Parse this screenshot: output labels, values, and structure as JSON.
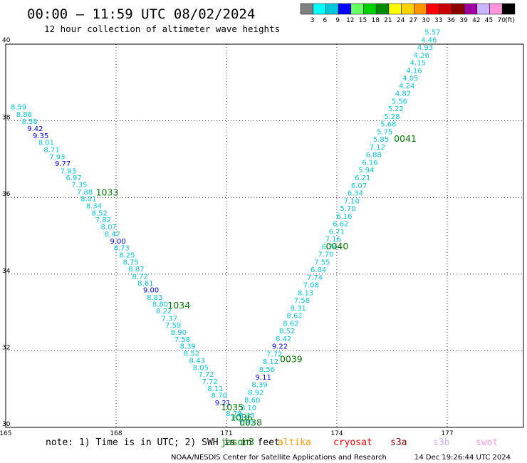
{
  "header": {
    "title": "00:00 – 11:59 UTC 08/02/2024",
    "subtitle": "12 hour collection of altimeter wave heights"
  },
  "legend": {
    "unit": "(ft)",
    "bins": [
      {
        "label": "3",
        "color": "#808080"
      },
      {
        "label": "6",
        "color": "#00ffff"
      },
      {
        "label": "9",
        "color": "#00c8dc"
      },
      {
        "label": "12",
        "color": "#0000ff"
      },
      {
        "label": "15",
        "color": "#66ff66"
      },
      {
        "label": "18",
        "color": "#00d200"
      },
      {
        "label": "21",
        "color": "#008c00"
      },
      {
        "label": "24",
        "color": "#ffff00"
      },
      {
        "label": "27",
        "color": "#ffd200"
      },
      {
        "label": "30",
        "color": "#ff9600"
      },
      {
        "label": "33",
        "color": "#ff0000"
      },
      {
        "label": "36",
        "color": "#c80000"
      },
      {
        "label": "39",
        "color": "#8c0000"
      },
      {
        "label": "42",
        "color": "#a000a0"
      },
      {
        "label": "45",
        "color": "#c8b4ff"
      },
      {
        "label": "70",
        "color": "#ff96dc"
      },
      {
        "label": "",
        "color": "#000000"
      }
    ]
  },
  "chart_data": {
    "type": "scatter",
    "xlim": [
      165,
      178
    ],
    "ylim": [
      30,
      40
    ],
    "xticks": [
      "165",
      "168",
      "171",
      "174",
      "177"
    ],
    "yticks": [
      "40",
      "38",
      "36",
      "34",
      "32",
      "30"
    ],
    "grid": true,
    "color_low": "#00c8dc",
    "color_high": "#0000ff",
    "color_time": "#007a00",
    "points": [
      {
        "x": 165.35,
        "y": 38.3,
        "v": "8.59"
      },
      {
        "x": 165.5,
        "y": 38.1,
        "v": "8.86"
      },
      {
        "x": 165.65,
        "y": 37.92,
        "v": "8.58"
      },
      {
        "x": 165.8,
        "y": 37.73,
        "v": "9.42"
      },
      {
        "x": 165.95,
        "y": 37.55,
        "v": "9.35"
      },
      {
        "x": 166.1,
        "y": 37.37,
        "v": "8.01"
      },
      {
        "x": 166.25,
        "y": 37.18,
        "v": "8.71"
      },
      {
        "x": 166.4,
        "y": 37.0,
        "v": "7.93"
      },
      {
        "x": 166.55,
        "y": 36.82,
        "v": "9.77"
      },
      {
        "x": 166.7,
        "y": 36.63,
        "v": "7.93"
      },
      {
        "x": 166.85,
        "y": 36.45,
        "v": "6.97"
      },
      {
        "x": 167.0,
        "y": 36.27,
        "v": "7.35"
      },
      {
        "x": 167.15,
        "y": 36.08,
        "v": "7.88"
      },
      {
        "x": 167.25,
        "y": 35.9,
        "v": "8.01"
      },
      {
        "x": 167.4,
        "y": 35.72,
        "v": "8.34"
      },
      {
        "x": 167.55,
        "y": 35.53,
        "v": "8.52"
      },
      {
        "x": 167.65,
        "y": 35.35,
        "v": "7.82"
      },
      {
        "x": 167.8,
        "y": 35.17,
        "v": "8.07"
      },
      {
        "x": 167.9,
        "y": 34.98,
        "v": "8.47"
      },
      {
        "x": 168.05,
        "y": 34.8,
        "v": "9.00"
      },
      {
        "x": 168.15,
        "y": 34.62,
        "v": "8.73"
      },
      {
        "x": 168.3,
        "y": 34.43,
        "v": "8.25"
      },
      {
        "x": 168.4,
        "y": 34.25,
        "v": "8.75"
      },
      {
        "x": 168.55,
        "y": 34.07,
        "v": "8.87"
      },
      {
        "x": 168.65,
        "y": 33.88,
        "v": "8.72"
      },
      {
        "x": 168.8,
        "y": 33.7,
        "v": "8.61"
      },
      {
        "x": 168.95,
        "y": 33.52,
        "v": "9.00"
      },
      {
        "x": 169.05,
        "y": 33.33,
        "v": "8.83"
      },
      {
        "x": 169.2,
        "y": 33.15,
        "v": "8.80"
      },
      {
        "x": 169.3,
        "y": 32.97,
        "v": "8.22"
      },
      {
        "x": 169.45,
        "y": 32.78,
        "v": "7.37"
      },
      {
        "x": 169.55,
        "y": 32.6,
        "v": "7.59"
      },
      {
        "x": 169.7,
        "y": 32.42,
        "v": "8.90"
      },
      {
        "x": 169.8,
        "y": 32.23,
        "v": "7.58"
      },
      {
        "x": 169.95,
        "y": 32.05,
        "v": "8.39"
      },
      {
        "x": 170.05,
        "y": 31.87,
        "v": "8.52"
      },
      {
        "x": 170.2,
        "y": 31.68,
        "v": "8.43"
      },
      {
        "x": 170.3,
        "y": 31.5,
        "v": "8.05"
      },
      {
        "x": 170.45,
        "y": 31.32,
        "v": "7.72"
      },
      {
        "x": 170.55,
        "y": 31.13,
        "v": "7.72"
      },
      {
        "x": 170.7,
        "y": 30.95,
        "v": "8.11"
      },
      {
        "x": 170.8,
        "y": 30.77,
        "v": "8.70"
      },
      {
        "x": 170.9,
        "y": 30.58,
        "v": "9.21"
      },
      {
        "x": 171.2,
        "y": 30.3,
        "v": "8.78"
      },
      {
        "x": 171.4,
        "y": 30.18,
        "v": "8.16"
      },
      {
        "x": 171.55,
        "y": 30.05,
        "v": "7.82"
      },
      {
        "x": 171.55,
        "y": 30.25,
        "v": "8.33"
      },
      {
        "x": 171.6,
        "y": 30.45,
        "v": "8.10"
      },
      {
        "x": 171.7,
        "y": 30.65,
        "v": "8.60"
      },
      {
        "x": 171.8,
        "y": 30.85,
        "v": "8.92"
      },
      {
        "x": 171.9,
        "y": 31.05,
        "v": "8.39"
      },
      {
        "x": 172.0,
        "y": 31.25,
        "v": "9.11"
      },
      {
        "x": 172.1,
        "y": 31.45,
        "v": "8.56"
      },
      {
        "x": 172.2,
        "y": 31.65,
        "v": "8.12"
      },
      {
        "x": 172.3,
        "y": 31.85,
        "v": "7.72"
      },
      {
        "x": 172.45,
        "y": 32.05,
        "v": "9.22"
      },
      {
        "x": 172.55,
        "y": 32.25,
        "v": "8.42"
      },
      {
        "x": 172.65,
        "y": 32.45,
        "v": "8.52"
      },
      {
        "x": 172.75,
        "y": 32.65,
        "v": "8.62"
      },
      {
        "x": 172.85,
        "y": 32.85,
        "v": "8.62"
      },
      {
        "x": 172.95,
        "y": 33.05,
        "v": "8.31"
      },
      {
        "x": 173.05,
        "y": 33.25,
        "v": "7.58"
      },
      {
        "x": 173.15,
        "y": 33.45,
        "v": "8.13"
      },
      {
        "x": 173.3,
        "y": 33.65,
        "v": "7.08"
      },
      {
        "x": 173.4,
        "y": 33.85,
        "v": "7.74"
      },
      {
        "x": 173.5,
        "y": 34.05,
        "v": "6.84"
      },
      {
        "x": 173.6,
        "y": 34.25,
        "v": "7.55"
      },
      {
        "x": 173.7,
        "y": 34.45,
        "v": "7.70"
      },
      {
        "x": 173.8,
        "y": 34.65,
        "v": "6.74"
      },
      {
        "x": 173.9,
        "y": 34.85,
        "v": "7.16"
      },
      {
        "x": 174.0,
        "y": 35.05,
        "v": "6.71"
      },
      {
        "x": 174.1,
        "y": 35.25,
        "v": "6.62"
      },
      {
        "x": 174.2,
        "y": 35.45,
        "v": "6.16"
      },
      {
        "x": 174.3,
        "y": 35.65,
        "v": "5.70"
      },
      {
        "x": 174.4,
        "y": 35.85,
        "v": "7.10"
      },
      {
        "x": 174.5,
        "y": 36.05,
        "v": "6.34"
      },
      {
        "x": 174.6,
        "y": 36.25,
        "v": "6.07"
      },
      {
        "x": 174.7,
        "y": 36.45,
        "v": "6.21"
      },
      {
        "x": 174.8,
        "y": 36.65,
        "v": "5.94"
      },
      {
        "x": 174.9,
        "y": 36.85,
        "v": "6.16"
      },
      {
        "x": 175.0,
        "y": 37.05,
        "v": "6.88"
      },
      {
        "x": 175.1,
        "y": 37.25,
        "v": "7.12"
      },
      {
        "x": 175.2,
        "y": 37.45,
        "v": "5.85"
      },
      {
        "x": 175.3,
        "y": 37.65,
        "v": "5.75"
      },
      {
        "x": 175.4,
        "y": 37.85,
        "v": "5.68"
      },
      {
        "x": 175.5,
        "y": 38.05,
        "v": "5.28"
      },
      {
        "x": 175.6,
        "y": 38.25,
        "v": "5.22"
      },
      {
        "x": 175.7,
        "y": 38.45,
        "v": "5.56"
      },
      {
        "x": 175.8,
        "y": 38.65,
        "v": "4.82"
      },
      {
        "x": 175.9,
        "y": 38.85,
        "v": "4.24"
      },
      {
        "x": 176.0,
        "y": 39.05,
        "v": "4.05"
      },
      {
        "x": 176.1,
        "y": 39.25,
        "v": "4.16"
      },
      {
        "x": 176.2,
        "y": 39.45,
        "v": "4.15"
      },
      {
        "x": 176.3,
        "y": 39.65,
        "v": "4.26"
      },
      {
        "x": 176.4,
        "y": 39.85,
        "v": "4.93"
      },
      {
        "x": 176.5,
        "y": 40.05,
        "v": "4.46"
      },
      {
        "x": 176.6,
        "y": 40.25,
        "v": "5.57"
      }
    ],
    "time_labels": [
      {
        "x": 167.45,
        "y": 36.05,
        "t": "1033"
      },
      {
        "x": 169.4,
        "y": 33.1,
        "t": "1034"
      },
      {
        "x": 170.85,
        "y": 30.45,
        "t": "1035"
      },
      {
        "x": 171.1,
        "y": 30.18,
        "t": "1036"
      },
      {
        "x": 171.35,
        "y": 30.05,
        "t": "0038"
      },
      {
        "x": 172.45,
        "y": 31.7,
        "t": "0039"
      },
      {
        "x": 173.7,
        "y": 34.65,
        "t": "0040"
      },
      {
        "x": 175.55,
        "y": 37.45,
        "t": "0041"
      }
    ]
  },
  "footer": {
    "note": "note: 1) Time is in UTC; 2) SWH is in feet",
    "satellites": [
      {
        "name": "jason3",
        "color": "#008c00"
      },
      {
        "name": "altika",
        "color": "#ff9600"
      },
      {
        "name": "cryosat",
        "color": "#ff0000"
      },
      {
        "name": "s3a",
        "color": "#8c0000"
      },
      {
        "name": "s3b",
        "color": "#c8b4ff"
      },
      {
        "name": "swot",
        "color": "#ff96dc"
      }
    ],
    "credit": "NOAA/NESDIS Center for Satellite Applications and Research",
    "timestamp": "14 Dec 19:26:44 UTC 2024"
  }
}
